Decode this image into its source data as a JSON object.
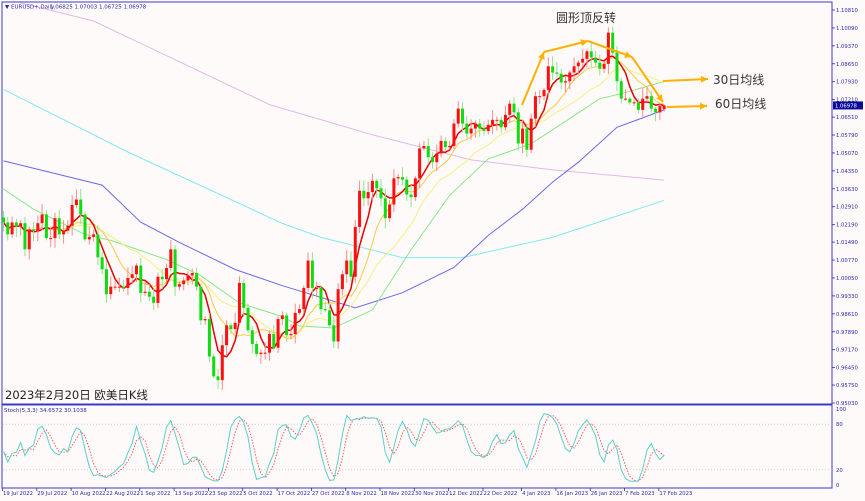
{
  "header": {
    "symbol": "EURUSD+,Daily",
    "ohlc_text": "1.06825 1.07003 1.06725 1.06978",
    "arrow_glyph": "▼"
  },
  "annotations": {
    "pattern_title": "圆形顶反转",
    "ma30_label": "30日均线",
    "ma60_label": "60日均线",
    "caption": "2023年2月20日 欧美日K线"
  },
  "current_price": "1.06978",
  "stoch": {
    "label": "Stoch(5,3,3) 34.6572 30.1038",
    "k_period": 5,
    "d_period": 3,
    "slowing": 3,
    "levels": [
      80,
      20
    ],
    "axis_labels": [
      "100",
      "80",
      "20",
      "0"
    ],
    "k_color": "#5ccfc6",
    "d_color": "#ff4a4a"
  },
  "colors": {
    "up_candle": "#ff1010",
    "down_candle": "#10dd10",
    "axis": "#2a2aa8",
    "annotation_arrow": "#ffb000",
    "price_box": "#0a0a9a"
  },
  "chart_data": {
    "type": "candlestick",
    "start_date": "2022-07-19",
    "price_axis_labels": [
      "1.10810",
      "1.10090",
      "1.09370",
      "1.08650",
      "1.07930",
      "1.07210",
      "1.06510",
      "1.05790",
      "1.05070",
      "1.04350",
      "1.03630",
      "1.02910",
      "1.02190",
      "1.01490",
      "1.00770",
      "1.00050",
      "0.99330",
      "0.98610",
      "0.97890",
      "0.97170",
      "0.96450",
      "0.95750",
      "0.95030"
    ],
    "ylim": [
      0.9503,
      1.1081
    ],
    "time_axis_labels": [
      "19 Jul 2022",
      "29 Jul 2022",
      "10 Aug 2022",
      "22 Aug 2022",
      "1 Sep 2022",
      "13 Sep 2022",
      "23 Sep 2022",
      "5 Oct 2022",
      "17 Oct 2022",
      "27 Oct 2022",
      "8 Nov 2022",
      "18 Nov 2022",
      "30 Nov 2022",
      "12 Dec 2022",
      "22 Dec 2022",
      "4 Jan 2023",
      "16 Jan 2023",
      "26 Jan 2023",
      "7 Feb 2023",
      "17 Feb 2023"
    ],
    "last_bar": {
      "open": 1.06825,
      "high": 1.07003,
      "low": 1.06725,
      "close": 1.06978
    },
    "closes": [
      1.0228,
      1.018,
      1.0228,
      1.0212,
      1.0225,
      1.012,
      1.02,
      1.0195,
      1.0225,
      1.026,
      1.0165,
      1.0165,
      1.0245,
      1.018,
      1.0195,
      1.0215,
      1.0298,
      1.032,
      1.026,
      1.016,
      1.017,
      1.018,
      1.0088,
      1.004,
      0.994,
      0.997,
      0.997,
      0.997,
      0.9965,
      1.0005,
      1.002,
      1.0055,
      0.9945,
      0.995,
      0.993,
      0.9905,
      1.001,
      1.0,
      1.0045,
      1.012,
      0.997,
      0.998,
      0.9995,
      1.0015,
      1.0025,
      0.997,
      0.9835,
      0.984,
      0.969,
      0.961,
      0.9595,
      0.9735,
      0.9815,
      0.98,
      0.9825,
      0.9985,
      0.9885,
      0.9795,
      0.974,
      0.97,
      0.9705,
      0.9705,
      0.978,
      0.9725,
      0.984,
      0.9855,
      0.9775,
      0.978,
      0.9865,
      0.988,
      0.9965,
      1.0075,
      0.9965,
      0.9965,
      0.988,
      0.9875,
      0.9815,
      0.975,
      0.996,
      1.002,
      1.0075,
      1.001,
      1.021,
      1.0355,
      1.0325,
      1.035,
      1.0395,
      1.0365,
      1.0325,
      1.0245,
      1.03,
      1.0405,
      1.041,
      1.04,
      1.034,
      1.033,
      1.0405,
      1.0525,
      1.0535,
      1.049,
      1.047,
      1.0505,
      1.0555,
      1.053,
      1.0535,
      1.0625,
      1.0685,
      1.0625,
      1.0585,
      1.0605,
      1.0625,
      1.0605,
      1.0595,
      1.062,
      1.064,
      1.064,
      1.061,
      1.066,
      1.0705,
      1.067,
      1.0545,
      1.0605,
      1.052,
      1.0645,
      1.0735,
      1.0735,
      1.076,
      1.0855,
      1.083,
      1.0825,
      1.079,
      1.0795,
      1.083,
      1.0855,
      1.087,
      1.0885,
      1.0915,
      1.089,
      1.087,
      1.0845,
      1.0865,
      1.099,
      1.091,
      1.0795,
      1.0725,
      1.0725,
      1.071,
      1.071,
      1.068,
      1.0725,
      1.0735,
      1.0685,
      1.067,
      1.0695,
      1.06978
    ],
    "moving_averages": [
      {
        "period": 5,
        "color": "#e80000",
        "computed": true
      },
      {
        "period": 10,
        "color": "#ffc840",
        "computed": true
      },
      {
        "period": 20,
        "color": "#f4f080",
        "computed": true
      },
      {
        "period": 30,
        "color": "#88e888",
        "points": [
          [
            "2022-07-19",
            1.0362
          ],
          [
            "2022-07-28",
            1.0281
          ],
          [
            "2022-08-15",
            1.018
          ],
          [
            "2022-08-23",
            1.0156
          ],
          [
            "2022-09-09",
            1.0079
          ],
          [
            "2022-09-21",
            1.0014
          ],
          [
            "2022-10-04",
            0.9905
          ],
          [
            "2022-10-18",
            0.985
          ],
          [
            "2022-10-24",
            0.9812
          ],
          [
            "2022-11-03",
            0.9804
          ],
          [
            "2022-11-16",
            0.9877
          ],
          [
            "2022-11-29",
            1.0119
          ],
          [
            "2022-12-12",
            1.0337
          ],
          [
            "2022-12-23",
            1.0483
          ],
          [
            "2023-01-06",
            1.0544
          ],
          [
            "2023-01-13",
            1.06
          ],
          [
            "2023-01-30",
            1.0725
          ],
          [
            "2023-02-06",
            1.0745
          ],
          [
            "2023-02-20",
            1.0794
          ]
        ]
      },
      {
        "period": 60,
        "color": "#6a6ae6",
        "points": [
          [
            "2022-07-19",
            1.0475
          ],
          [
            "2022-08-19",
            1.0378
          ],
          [
            "2022-09-01",
            1.0229
          ],
          [
            "2022-09-14",
            1.0148
          ],
          [
            "2022-10-03",
            1.0039
          ],
          [
            "2022-10-18",
            0.9974
          ],
          [
            "2022-11-10",
            0.9885
          ],
          [
            "2022-11-25",
            0.9946
          ],
          [
            "2022-12-13",
            1.0047
          ],
          [
            "2022-12-23",
            1.0176
          ],
          [
            "2023-01-04",
            1.0281
          ],
          [
            "2023-01-13",
            1.039
          ],
          [
            "2023-01-23",
            1.047
          ],
          [
            "2023-02-03",
            1.061
          ],
          [
            "2023-02-20",
            1.068
          ]
        ]
      },
      {
        "period": 120,
        "color": "#80eaf0",
        "points": [
          [
            "2022-07-19",
            1.0762
          ],
          [
            "2022-08-29",
            1.0511
          ],
          [
            "2022-10-18",
            1.0224
          ],
          [
            "2022-10-31",
            1.0168
          ],
          [
            "2022-11-25",
            1.0087
          ],
          [
            "2022-12-15",
            1.0087
          ],
          [
            "2023-01-13",
            1.0168
          ],
          [
            "2023-02-20",
            1.0317
          ]
        ]
      },
      {
        "period": 200,
        "color": "#e2b8ea",
        "points": [
          [
            "2022-07-19",
            1.1125
          ],
          [
            "2022-07-28",
            1.1097
          ],
          [
            "2022-08-17",
            1.1037
          ],
          [
            "2022-10-13",
            1.0701
          ],
          [
            "2022-11-16",
            1.058
          ],
          [
            "2022-12-19",
            1.0479
          ],
          [
            "2023-01-13",
            1.0439
          ],
          [
            "2023-02-20",
            1.0398
          ]
        ]
      }
    ]
  }
}
